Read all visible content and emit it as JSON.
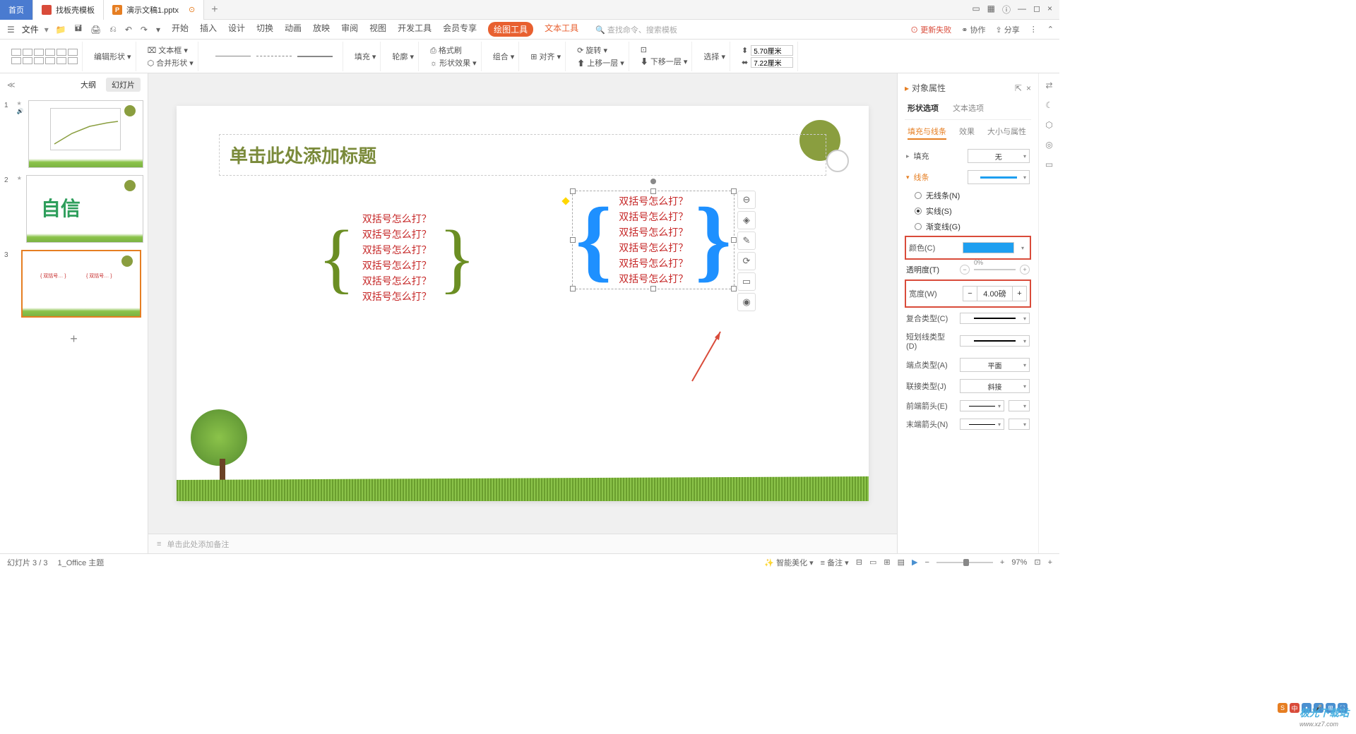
{
  "titleBar": {
    "tabs": [
      {
        "label": "首页",
        "active": true
      },
      {
        "label": "找板壳模板",
        "icon": "red"
      },
      {
        "label": "演示文稿1.pptx",
        "icon": "orange",
        "iconText": "P",
        "warn": "⊙"
      }
    ],
    "addTab": "+",
    "winIcons": [
      "▭",
      "▦",
      "ⓘ",
      "—",
      "◻",
      "×"
    ]
  },
  "menuBar": {
    "fileBtn": "文件",
    "quickIcons": [
      "☰",
      "📁",
      "🖬",
      "🖨",
      "⎌",
      "↶",
      "↷",
      "▾"
    ],
    "tabs": [
      "开始",
      "插入",
      "设计",
      "切换",
      "动画",
      "放映",
      "审阅",
      "视图",
      "开发工具",
      "会员专享"
    ],
    "activeTab": "绘图工具",
    "subTab": "文本工具",
    "searchPlaceholder": "查找命令、搜索模板",
    "right": {
      "fail": "⊙ 更新失败",
      "collab": "⚭ 协作",
      "share": "⇪ 分享",
      "more": "⋮",
      "chev": "⌃"
    }
  },
  "ribbon": {
    "editShape": "编辑形状 ▾",
    "textBox": "⌧ 文本框 ▾",
    "mergeShape": "⬡ 合并形状 ▾",
    "fill": "填充 ▾",
    "outline": "轮廓 ▾",
    "formatPainter": "⎙ 格式刷",
    "shapeEffect": "☼ 形状效果 ▾",
    "group": "组合 ▾",
    "align": "⊞ 对齐 ▾",
    "rotate": "⟳ 旋转 ▾",
    "moveUp": "⬆ 上移一层 ▾",
    "moveDown": "⬇ 下移一层 ▾",
    "taskPane": "⊡",
    "select": "选择 ▾",
    "height": "5.70厘米",
    "width": "7.22厘米"
  },
  "sideHeader": {
    "outline": "大纲",
    "slides": "幻灯片",
    "collapse": "≪"
  },
  "thumbs": {
    "t2text": "自信",
    "t3lines": [
      "双括号…",
      "双括号…",
      "双括号…"
    ]
  },
  "slide": {
    "titlePlaceholder": "单击此处添加标题",
    "textLine": "双括号怎么打？",
    "leftCount": 6,
    "rightCount": 6,
    "floatIcons": [
      "⊖",
      "◈",
      "✎",
      "⟳",
      "▭",
      "◉"
    ]
  },
  "notes": {
    "icon": "≡",
    "placeholder": "单击此处添加备注"
  },
  "panel": {
    "title": "对象属性",
    "tabs": [
      "形状选项",
      "文本选项"
    ],
    "subtabs": [
      "填充与线条",
      "效果",
      "大小与属性"
    ],
    "fillLabel": "填充",
    "fillValue": "无",
    "lineLabel": "线条",
    "radioNone": "无线条(N)",
    "radioSolid": "实线(S)",
    "radioGradient": "渐变线(G)",
    "colorLabel": "颜色(C)",
    "opacityLabel": "透明度(T)",
    "opacityValue": "0%",
    "widthLabel": "宽度(W)",
    "widthValue": "4.00磅",
    "compoundLabel": "复合类型(C)",
    "dashLabel": "短划线类型(D)",
    "capLabel": "端点类型(A)",
    "capValue": "平面",
    "joinLabel": "联接类型(J)",
    "joinValue": "斜接",
    "arrowStartLabel": "前端箭头(E)",
    "arrowEndLabel": "末端箭头(N)",
    "lineColor": "#1e9ff0"
  },
  "sideIcons": [
    "⇄",
    "☾",
    "⬡",
    "◎",
    "▭"
  ],
  "statusBar": {
    "slideInfo": "幻灯片 3 / 3",
    "theme": "1_Office 主题",
    "beautify": "✨ 智能美化 ▾",
    "notes": "≡ 备注 ▾",
    "comments": "⊟",
    "viewIcons": [
      "▭",
      "⊞",
      "▤",
      "▶"
    ],
    "zoom": "97%",
    "fit": "⊡",
    "expand": "+"
  },
  "watermark": {
    "badges": [
      {
        "t": "S",
        "c": "#e67e22"
      },
      {
        "t": "中",
        "c": "#d94b3a"
      },
      {
        "t": "•",
        "c": "#4a90d0"
      },
      {
        "t": "🎤",
        "c": "#4a90d0"
      },
      {
        "t": "⊞",
        "c": "#4a90d0"
      },
      {
        "t": "⛶",
        "c": "#4a90d0"
      }
    ],
    "brand": "极光下载站",
    "url": "www.xz7.com"
  }
}
